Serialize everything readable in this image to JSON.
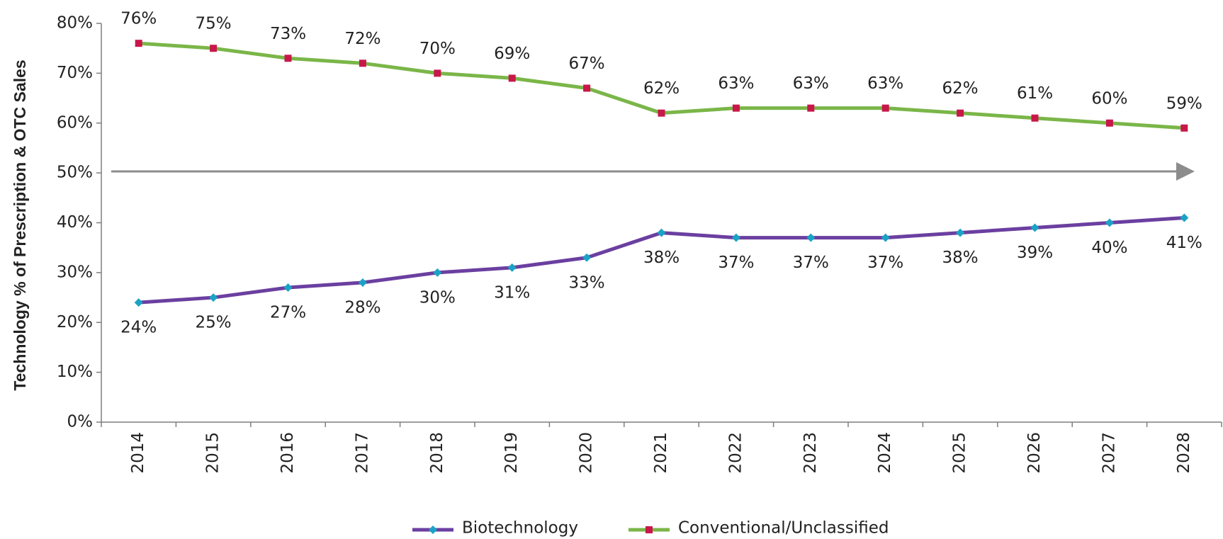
{
  "chart_data": {
    "type": "line",
    "ylabel": "Technology % of Prescription & OTC Sales",
    "categories": [
      "2014",
      "2015",
      "2016",
      "2017",
      "2018",
      "2019",
      "2020",
      "2021",
      "2022",
      "2023",
      "2024",
      "2025",
      "2026",
      "2027",
      "2028"
    ],
    "series": [
      {
        "name": "Biotechnology",
        "color": "#6b3fa0",
        "marker_color": "#1ba3c6",
        "marker": "diamond",
        "label_position": "below",
        "values": [
          24,
          25,
          27,
          28,
          30,
          31,
          33,
          38,
          37,
          37,
          37,
          38,
          39,
          40,
          41
        ],
        "value_labels": [
          "24%",
          "25%",
          "27%",
          "28%",
          "30%",
          "31%",
          "33%",
          "38%",
          "37%",
          "37%",
          "37%",
          "38%",
          "39%",
          "40%",
          "41%"
        ]
      },
      {
        "name": "Conventional/Unclassified",
        "color": "#7ab648",
        "marker_color": "#c8174a",
        "marker": "square",
        "label_position": "above",
        "values": [
          76,
          75,
          73,
          72,
          70,
          69,
          67,
          62,
          63,
          63,
          63,
          62,
          61,
          60,
          59
        ],
        "value_labels": [
          "76%",
          "75%",
          "73%",
          "72%",
          "70%",
          "69%",
          "67%",
          "62%",
          "63%",
          "63%",
          "63%",
          "62%",
          "61%",
          "60%",
          "59%"
        ]
      }
    ],
    "ylim": [
      0,
      80
    ],
    "yticks": [
      {
        "value": 0,
        "label": "0%"
      },
      {
        "value": 10,
        "label": "10%"
      },
      {
        "value": 20,
        "label": "20%"
      },
      {
        "value": 30,
        "label": "30%"
      },
      {
        "value": 40,
        "label": "40%"
      },
      {
        "value": 50,
        "label": "50%"
      },
      {
        "value": 60,
        "label": "60%"
      },
      {
        "value": 70,
        "label": "70%"
      },
      {
        "value": 80,
        "label": "80%"
      }
    ],
    "legend": "bottom"
  }
}
